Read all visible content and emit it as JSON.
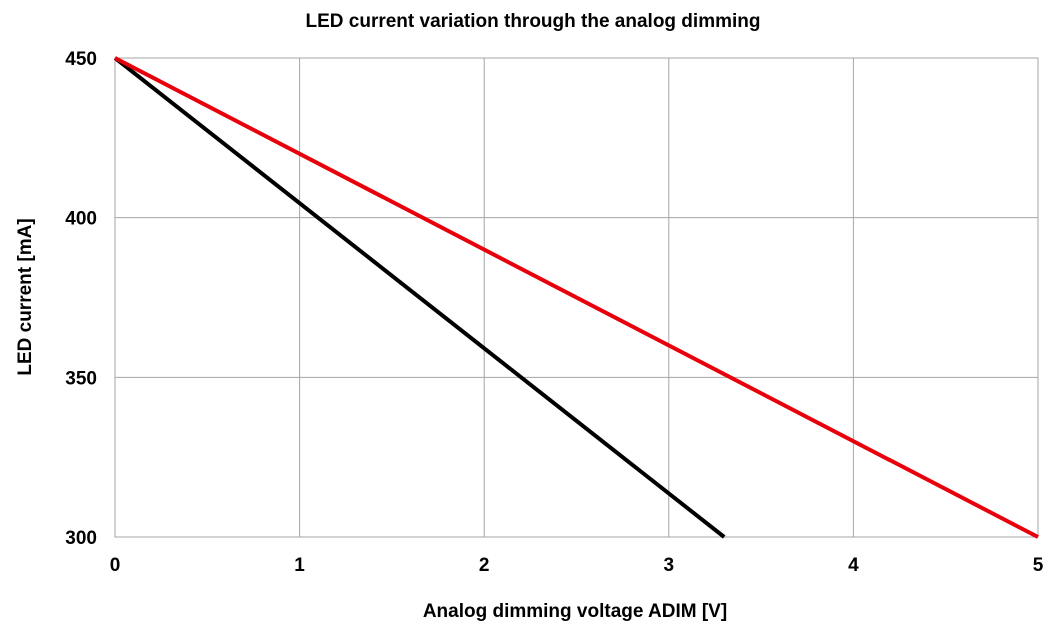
{
  "chart_data": {
    "type": "line",
    "title": "LED current variation through the analog dimming",
    "xlabel": "Analog dimming voltage  ADIM  [V]",
    "ylabel": "LED current  [mA]",
    "xlim": [
      0,
      5
    ],
    "ylim": [
      300,
      450
    ],
    "x_ticks": [
      "0",
      "1",
      "2",
      "3",
      "4",
      "5"
    ],
    "y_ticks": [
      "300",
      "350",
      "400",
      "450"
    ],
    "grid": true,
    "legend": "none",
    "series": [
      {
        "color": "#000000",
        "x": [
          0,
          3.3
        ],
        "y": [
          450,
          300
        ]
      },
      {
        "color": "#e8000b",
        "x": [
          0,
          5
        ],
        "y": [
          450,
          300
        ]
      }
    ]
  }
}
